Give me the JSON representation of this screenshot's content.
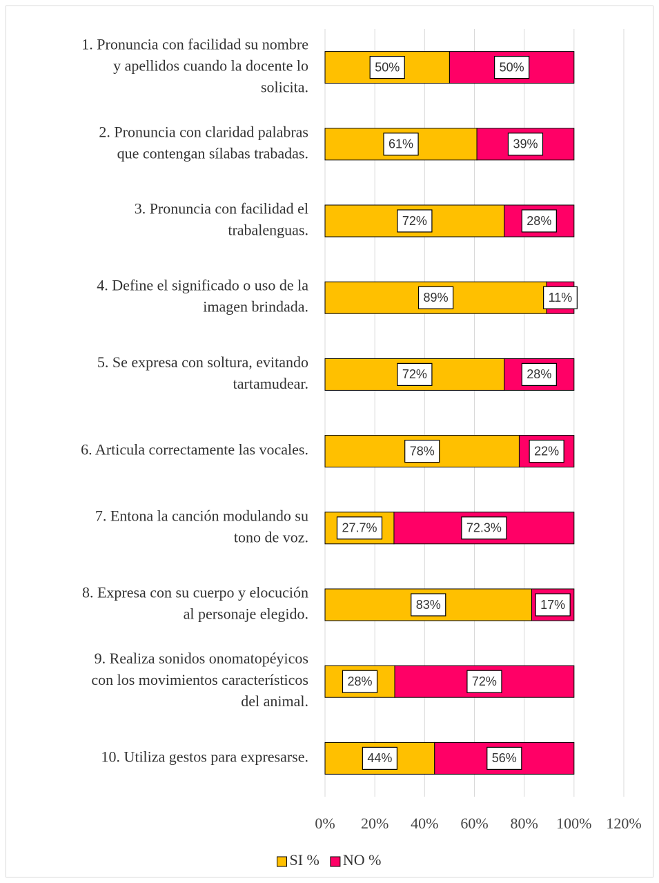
{
  "chart_data": {
    "type": "stacked-barh",
    "categories": [
      [
        "1. Pronuncia con facilidad su nombre",
        "y apellidos cuando la docente lo",
        "solicita."
      ],
      [
        "2. Pronuncia con claridad palabras",
        "que contengan sílabas trabadas."
      ],
      [
        "3. Pronuncia con facilidad el",
        "trabalenguas."
      ],
      [
        "4. Define el significado o uso de la",
        "imagen brindada."
      ],
      [
        "5. Se expresa con soltura, evitando",
        "tartamudear."
      ],
      [
        "6. Articula correctamente las vocales."
      ],
      [
        "7. Entona la canción modulando su",
        "tono de voz."
      ],
      [
        "8. Expresa con su cuerpo y elocución",
        "al personaje elegido."
      ],
      [
        "9. Realiza sonidos onomatopéyicos",
        "con los movimientos característicos",
        "del  animal."
      ],
      [
        "10. Utiliza gestos para expresarse."
      ]
    ],
    "series": [
      {
        "name": "SI %",
        "color": "#FFC000",
        "values": [
          50,
          61,
          72,
          89,
          72,
          78,
          27.7,
          83,
          28,
          44
        ],
        "value_labels": [
          "50%",
          "61%",
          "72%",
          "89%",
          "72%",
          "78%",
          "27.7%",
          "83%",
          "28%",
          "44%"
        ]
      },
      {
        "name": "NO %",
        "color": "#FF0066",
        "values": [
          50,
          39,
          28,
          11,
          28,
          22,
          72.3,
          17,
          72,
          56
        ],
        "value_labels": [
          "50%",
          "39%",
          "28%",
          "11%",
          "28%",
          "22%",
          "72.3%",
          "17%",
          "72%",
          "56%"
        ]
      }
    ],
    "xlim": [
      0,
      120
    ],
    "xticks": [
      {
        "value": 0,
        "label": "0%"
      },
      {
        "value": 20,
        "label": "20%"
      },
      {
        "value": 40,
        "label": "40%"
      },
      {
        "value": 60,
        "label": "60%"
      },
      {
        "value": 80,
        "label": "80%"
      },
      {
        "value": 100,
        "label": "100%"
      },
      {
        "value": 120,
        "label": "120%"
      }
    ],
    "grid": true,
    "legend": "bottom"
  }
}
